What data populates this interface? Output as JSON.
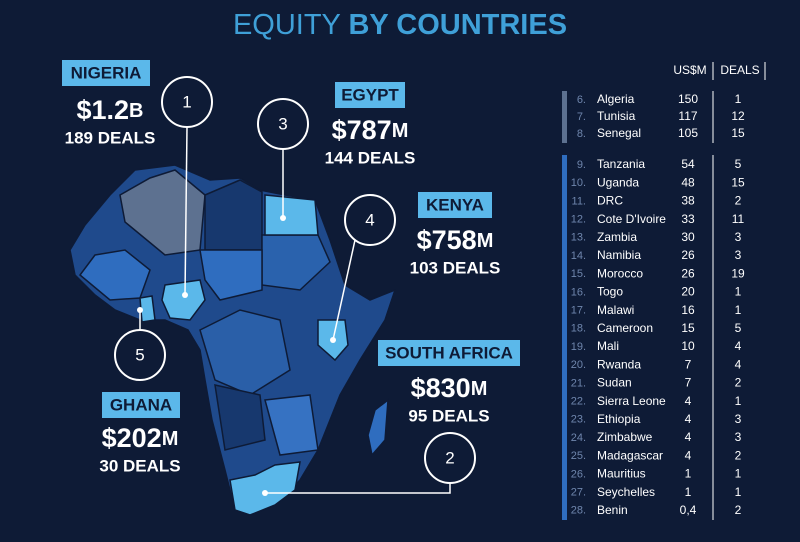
{
  "title": {
    "light": "EQUITY",
    "bold": "BY COUNTRIES"
  },
  "callouts": [
    {
      "name": "NIGERIA",
      "amount": "$1.2",
      "unit": "B",
      "deals": "189 DEALS",
      "rank": "1"
    },
    {
      "name": "EGYPT",
      "amount": "$787",
      "unit": "M",
      "deals": "144 DEALS",
      "rank": "3"
    },
    {
      "name": "KENYA",
      "amount": "$758",
      "unit": "M",
      "deals": "103 DEALS",
      "rank": "4"
    },
    {
      "name": "SOUTH AFRICA",
      "amount": "$830",
      "unit": "M",
      "deals": "95 DEALS",
      "rank": "2"
    },
    {
      "name": "GHANA",
      "amount": "$202",
      "unit": "M",
      "deals": "30 DEALS",
      "rank": "5"
    }
  ],
  "table": {
    "headers": [
      "US$M",
      "DEALS"
    ],
    "groups": [
      [
        [
          "6.",
          "Algeria",
          150,
          1
        ],
        [
          "7.",
          "Tunisia",
          117,
          12
        ],
        [
          "8.",
          "Senegal",
          105,
          15
        ]
      ],
      [
        [
          "9.",
          "Tanzania",
          54,
          5
        ],
        [
          "10.",
          "Uganda",
          48,
          15
        ],
        [
          "11.",
          "DRC",
          38,
          2
        ],
        [
          "12.",
          "Cote D'Ivoire",
          33,
          11
        ],
        [
          "13.",
          "Zambia",
          30,
          3
        ],
        [
          "14.",
          "Namibia",
          26,
          3
        ],
        [
          "15.",
          "Morocco",
          26,
          19
        ],
        [
          "16.",
          "Togo",
          20,
          1
        ],
        [
          "17.",
          "Malawi",
          16,
          1
        ],
        [
          "18.",
          "Cameroon",
          15,
          5
        ],
        [
          "19.",
          "Mali",
          10,
          4
        ],
        [
          "20.",
          "Rwanda",
          7,
          4
        ],
        [
          "21.",
          "Sudan",
          7,
          2
        ],
        [
          "22.",
          "Sierra Leone",
          4,
          1
        ],
        [
          "23.",
          "Ethiopia",
          4,
          3
        ],
        [
          "24.",
          "Zimbabwe",
          4,
          3
        ],
        [
          "25.",
          "Madagascar",
          4,
          2
        ],
        [
          "26.",
          "Mauritius",
          1,
          1
        ],
        [
          "27.",
          "Seychelles",
          1,
          1
        ],
        [
          "28.",
          "Benin",
          "0,4",
          2
        ]
      ]
    ]
  }
}
